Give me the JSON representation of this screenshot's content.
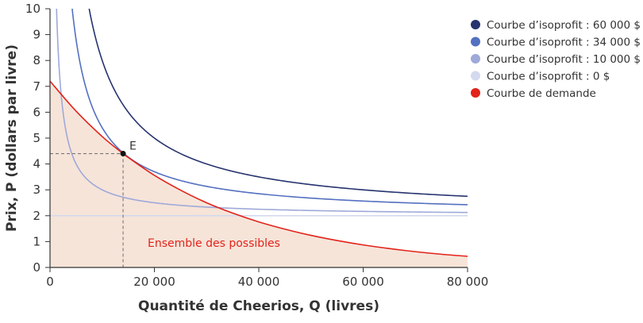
{
  "chart_data": {
    "type": "line",
    "xlabel": "Quantité de Cheerios, Q (livres)",
    "ylabel": "Prix, P (dollars par livre)",
    "xlim": [
      0,
      80000
    ],
    "ylim": [
      0,
      10
    ],
    "x_ticks": [
      0,
      20000,
      40000,
      60000,
      80000
    ],
    "x_tick_labels": [
      "0",
      "20 000",
      "40 000",
      "60 000",
      "80 000"
    ],
    "y_ticks": [
      0,
      1,
      2,
      3,
      4,
      5,
      6,
      7,
      8,
      9,
      10
    ],
    "grid": false,
    "legend_placement": "top-right",
    "isoprofit_unit_cost": 2,
    "series": [
      {
        "name": "Courbe d’isoprofit : 60 000 $",
        "profit": 60000,
        "color": "#27336e"
      },
      {
        "name": "Courbe d’isoprofit : 34 000 $",
        "profit": 34000,
        "color": "#5470c0"
      },
      {
        "name": "Courbe d’isoprofit : 10 000 $",
        "profit": 10000,
        "color": "#9ea9d9"
      },
      {
        "name": "Courbe d’isoprofit : 0 $",
        "profit": 0,
        "color": "#d3d9ef"
      },
      {
        "name": "Courbe de demande",
        "color": "#e2231a",
        "x": [
          0,
          5000,
          10000,
          14000,
          15000,
          20000,
          25000,
          30000,
          35000,
          40000,
          45000,
          50000,
          55000,
          60000,
          65000,
          70000,
          75000,
          80000
        ],
        "y": [
          7.2,
          6.04,
          5.06,
          4.4,
          4.25,
          3.56,
          2.99,
          2.5,
          2.1,
          1.76,
          1.48,
          1.24,
          1.04,
          0.87,
          0.73,
          0.61,
          0.51,
          0.43
        ]
      }
    ],
    "point": {
      "label": "E",
      "x": 14000,
      "y": 4.4
    },
    "region_label": "Ensemble des possibles",
    "region_fill": "#f6e4d9"
  }
}
